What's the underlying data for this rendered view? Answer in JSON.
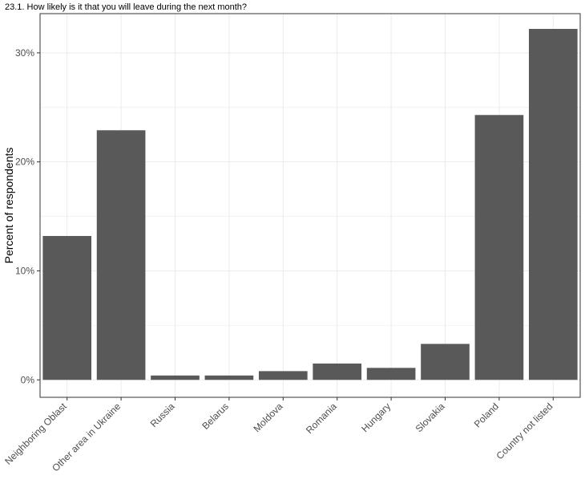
{
  "chart_data": {
    "type": "bar",
    "title": "23.1. How likely is it that you will leave during the next month?",
    "xlabel": "",
    "ylabel": "Percent of respondents",
    "categories": [
      "Neighboring Oblast",
      "Other area in Ukraine",
      "Russia",
      "Belarus",
      "Moldova",
      "Romania",
      "Hungary",
      "Slovakia",
      "Poland",
      "Country not listed"
    ],
    "values": [
      13.2,
      22.9,
      0.4,
      0.4,
      0.8,
      1.5,
      1.1,
      3.3,
      24.3,
      32.2
    ],
    "ylim": [
      -1.6,
      33.6
    ],
    "y_ticks": [
      0,
      10,
      20,
      30
    ],
    "y_tick_labels": [
      "0%",
      "10%",
      "20%",
      "30%"
    ],
    "grid": true,
    "bar_color": "#595959",
    "grid_color": "#ebebeb",
    "panel_border_color": "#333333"
  }
}
